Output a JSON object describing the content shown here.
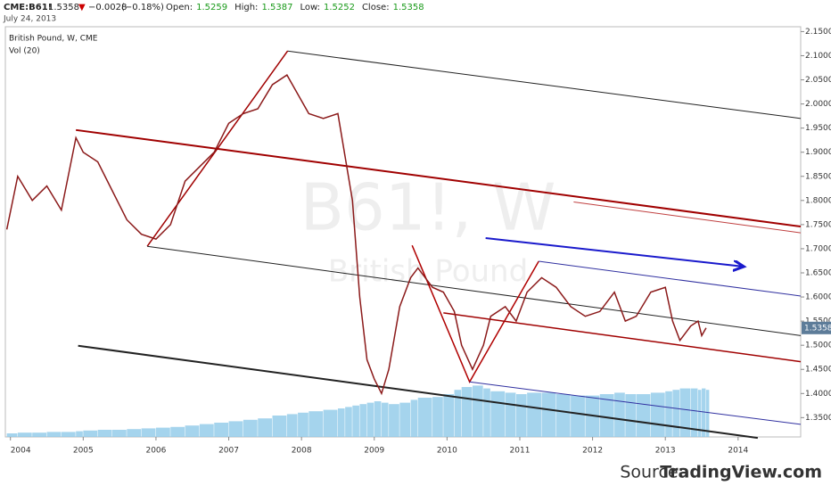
{
  "header": {
    "symbol": "CME:B61!",
    "last": 1.5358,
    "arrow": "▼",
    "change": "−0.0028",
    "change_pct": "(−0.18%)",
    "ohlc": [
      {
        "label": "Open:",
        "value": 1.5259
      },
      {
        "label": "High:",
        "value": 1.5387
      },
      {
        "label": "Low:",
        "value": 1.5252
      },
      {
        "label": "Close:",
        "value": 1.5358
      }
    ],
    "date": "July 24, 2013"
  },
  "source": {
    "prefix": "Source:",
    "name": "TradingView.com"
  },
  "chart_data": {
    "type": "line",
    "title": "British Pound, W, CME",
    "volume_title": "Vol (20)",
    "watermark": "B61!, W",
    "watermark_sub": "British Pound",
    "xlim": [
      2003.93,
      2014.86
    ],
    "xticks": [
      2004,
      2005,
      2006,
      2007,
      2008,
      2009,
      2010,
      2011,
      2012,
      2013,
      2014
    ],
    "ylim": [
      1.31,
      2.16
    ],
    "yticks": [
      {
        "value": 1.35,
        "label": "1.3500"
      },
      {
        "value": 1.4,
        "label": "1.4000"
      },
      {
        "value": 1.45,
        "label": "1.4500"
      },
      {
        "value": 1.5,
        "label": "1.5000"
      },
      {
        "value": 1.55,
        "label": "1.5500"
      },
      {
        "value": 1.6,
        "label": "1.6000"
      },
      {
        "value": 1.65,
        "label": "1.6500"
      },
      {
        "value": 1.7,
        "label": "1.7000"
      },
      {
        "value": 1.75,
        "label": "1.7500"
      },
      {
        "value": 1.8,
        "label": "1.8000"
      },
      {
        "value": 1.85,
        "label": "1.8500"
      },
      {
        "value": 1.9,
        "label": "1.9000"
      },
      {
        "value": 1.95,
        "label": "1.9500"
      },
      {
        "value": 2.0,
        "label": "2.0000"
      },
      {
        "value": 2.05,
        "label": "2.0500"
      },
      {
        "value": 2.1,
        "label": "2.1000"
      },
      {
        "value": 2.15,
        "label": "2.1500"
      }
    ],
    "y2lim": [
      0,
      100
    ],
    "x": [
      2003.95,
      2004.1,
      2004.3,
      2004.5,
      2004.7,
      2004.9,
      2005.0,
      2005.2,
      2005.4,
      2005.6,
      2005.8,
      2006.0,
      2006.2,
      2006.4,
      2006.6,
      2006.8,
      2007.0,
      2007.2,
      2007.4,
      2007.6,
      2007.8,
      2007.95,
      2008.1,
      2008.3,
      2008.5,
      2008.6,
      2008.7,
      2008.8,
      2008.9,
      2009.0,
      2009.1,
      2009.2,
      2009.35,
      2009.5,
      2009.6,
      2009.8,
      2009.95,
      2010.1,
      2010.2,
      2010.35,
      2010.5,
      2010.6,
      2010.8,
      2010.95,
      2011.1,
      2011.3,
      2011.5,
      2011.7,
      2011.9,
      2012.1,
      2012.3,
      2012.45,
      2012.6,
      2012.8,
      2013.0,
      2013.1,
      2013.2,
      2013.35,
      2013.45,
      2013.5,
      2013.56
    ],
    "series": [
      {
        "name": "British Pound",
        "color": "#8b1a1a",
        "values": [
          1.74,
          1.85,
          1.8,
          1.83,
          1.78,
          1.93,
          1.9,
          1.88,
          1.82,
          1.76,
          1.73,
          1.72,
          1.75,
          1.84,
          1.87,
          1.9,
          1.96,
          1.98,
          1.99,
          2.04,
          2.06,
          2.02,
          1.98,
          1.97,
          1.98,
          1.89,
          1.8,
          1.6,
          1.47,
          1.43,
          1.4,
          1.45,
          1.58,
          1.64,
          1.66,
          1.62,
          1.61,
          1.57,
          1.5,
          1.45,
          1.5,
          1.56,
          1.58,
          1.55,
          1.61,
          1.64,
          1.62,
          1.58,
          1.56,
          1.57,
          1.61,
          1.55,
          1.56,
          1.61,
          1.62,
          1.55,
          1.51,
          1.54,
          1.55,
          1.52,
          1.5358
        ]
      },
      {
        "name": "Vol (20)",
        "color": "#8ec9e8",
        "axis": "y2",
        "values": [
          5,
          6,
          6,
          7,
          7,
          8,
          9,
          10,
          10,
          11,
          12,
          13,
          14,
          16,
          18,
          20,
          22,
          24,
          26,
          30,
          32,
          34,
          36,
          38,
          40,
          42,
          44,
          46,
          48,
          50,
          48,
          46,
          48,
          52,
          55,
          56,
          60,
          66,
          70,
          72,
          68,
          64,
          62,
          60,
          62,
          62,
          60,
          58,
          58,
          60,
          62,
          60,
          60,
          62,
          64,
          66,
          68,
          68,
          66,
          68,
          66
        ]
      }
    ],
    "drawings": [
      {
        "color": "#222222",
        "width": 1,
        "x": [
          2007.81,
          2014.86
        ],
        "y": [
          2.1096,
          1.97
        ]
      },
      {
        "color": "#a00000",
        "width": 1.5,
        "x": [
          2005.88,
          2007.81
        ],
        "y": [
          1.705,
          2.11
        ]
      },
      {
        "color": "#a00000",
        "width": 2,
        "x": [
          2004.9,
          2014.86
        ],
        "y": [
          1.946,
          1.746
        ]
      },
      {
        "color": "#c04040",
        "width": 1,
        "x": [
          2011.74,
          2014.86
        ],
        "y": [
          1.797,
          1.733
        ]
      },
      {
        "color": "#222222",
        "width": 1,
        "x": [
          2005.88,
          2014.86
        ],
        "y": [
          1.705,
          1.52
        ]
      },
      {
        "color": "#222222",
        "width": 2,
        "x": [
          2004.93,
          2014.27
        ],
        "y": [
          1.499,
          1.308
        ]
      },
      {
        "color": "#b00000",
        "width": 1.5,
        "x": [
          2009.52,
          2010.31,
          2011.26
        ],
        "y": [
          1.707,
          1.424,
          1.674
        ]
      },
      {
        "color": "#a00000",
        "width": 1.5,
        "x": [
          2009.95,
          2014.86
        ],
        "y": [
          1.567,
          1.466
        ]
      },
      {
        "color": "#3030a0",
        "width": 1,
        "x": [
          2011.26,
          2014.86
        ],
        "y": [
          1.674,
          1.602
        ]
      },
      {
        "color": "#3030a0",
        "width": 1,
        "x": [
          2010.31,
          2014.86
        ],
        "y": [
          1.424,
          1.336
        ]
      },
      {
        "color": "#1a1acc",
        "width": 2,
        "x": [
          2010.53,
          2014.08
        ],
        "y": [
          1.722,
          1.663
        ]
      }
    ]
  }
}
